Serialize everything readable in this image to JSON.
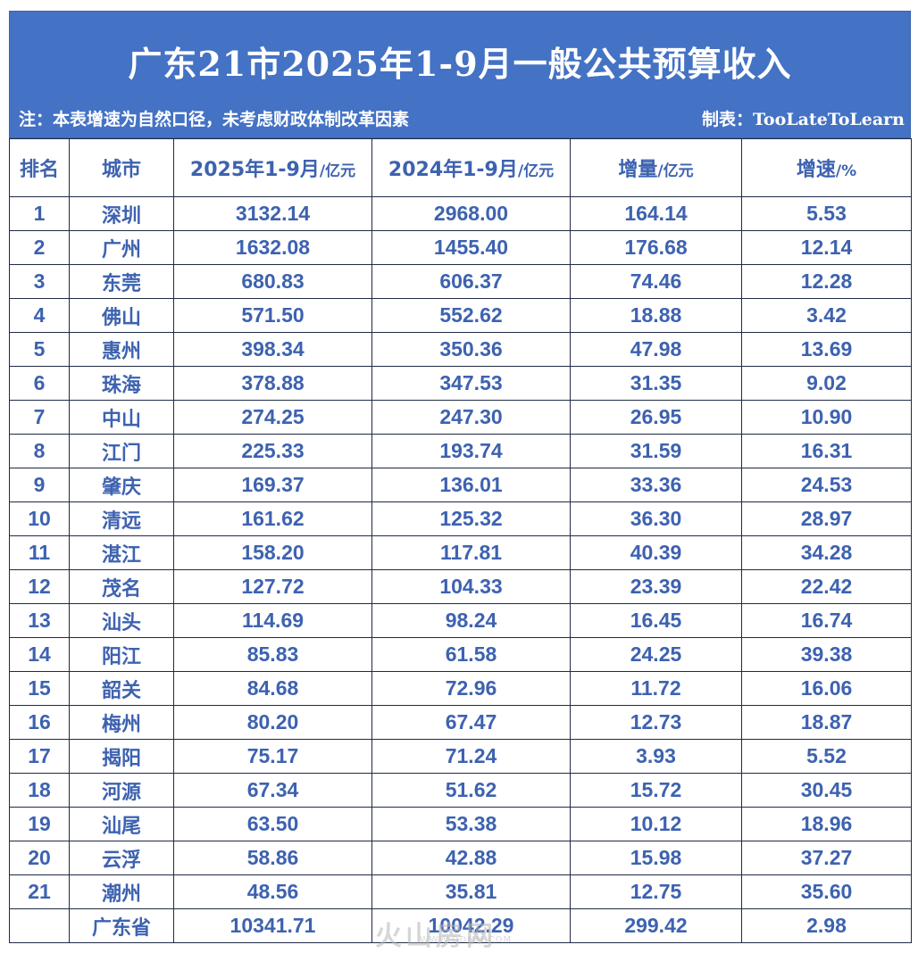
{
  "header": {
    "title": "广东21市2025年1-9月一般公共预算收入",
    "note": "注：本表增速为自然口径，未考虑财政体制改革因素",
    "maker": "制表：TooLateToLearn"
  },
  "columns": [
    {
      "label": "排名",
      "unit": ""
    },
    {
      "label": "城市",
      "unit": ""
    },
    {
      "label": "2025年1-9月",
      "unit": "/亿元"
    },
    {
      "label": "2024年1-9月",
      "unit": "/亿元"
    },
    {
      "label": "增量",
      "unit": "/亿元"
    },
    {
      "label": "增速",
      "unit": "/%"
    }
  ],
  "rows": [
    [
      "1",
      "深圳",
      "3132.14",
      "2968.00",
      "164.14",
      "5.53"
    ],
    [
      "2",
      "广州",
      "1632.08",
      "1455.40",
      "176.68",
      "12.14"
    ],
    [
      "3",
      "东莞",
      "680.83",
      "606.37",
      "74.46",
      "12.28"
    ],
    [
      "4",
      "佛山",
      "571.50",
      "552.62",
      "18.88",
      "3.42"
    ],
    [
      "5",
      "惠州",
      "398.34",
      "350.36",
      "47.98",
      "13.69"
    ],
    [
      "6",
      "珠海",
      "378.88",
      "347.53",
      "31.35",
      "9.02"
    ],
    [
      "7",
      "中山",
      "274.25",
      "247.30",
      "26.95",
      "10.90"
    ],
    [
      "8",
      "江门",
      "225.33",
      "193.74",
      "31.59",
      "16.31"
    ],
    [
      "9",
      "肇庆",
      "169.37",
      "136.01",
      "33.36",
      "24.53"
    ],
    [
      "10",
      "清远",
      "161.62",
      "125.32",
      "36.30",
      "28.97"
    ],
    [
      "11",
      "湛江",
      "158.20",
      "117.81",
      "40.39",
      "34.28"
    ],
    [
      "12",
      "茂名",
      "127.72",
      "104.33",
      "23.39",
      "22.42"
    ],
    [
      "13",
      "汕头",
      "114.69",
      "98.24",
      "16.45",
      "16.74"
    ],
    [
      "14",
      "阳江",
      "85.83",
      "61.58",
      "24.25",
      "39.38"
    ],
    [
      "15",
      "韶关",
      "84.68",
      "72.96",
      "11.72",
      "16.06"
    ],
    [
      "16",
      "梅州",
      "80.20",
      "67.47",
      "12.73",
      "18.87"
    ],
    [
      "17",
      "揭阳",
      "75.17",
      "71.24",
      "3.93",
      "5.52"
    ],
    [
      "18",
      "河源",
      "67.34",
      "51.62",
      "15.72",
      "30.45"
    ],
    [
      "19",
      "汕尾",
      "63.50",
      "53.38",
      "10.12",
      "18.96"
    ],
    [
      "20",
      "云浮",
      "58.86",
      "42.88",
      "15.98",
      "37.27"
    ],
    [
      "21",
      "潮州",
      "48.56",
      "35.81",
      "12.75",
      "35.60"
    ]
  ],
  "total": [
    "",
    "广东省",
    "10341.71",
    "10042.29",
    "299.42",
    "2.98"
  ],
  "watermark": {
    "text": "火山房网",
    "sub": "WWW.ODMM.COM"
  }
}
